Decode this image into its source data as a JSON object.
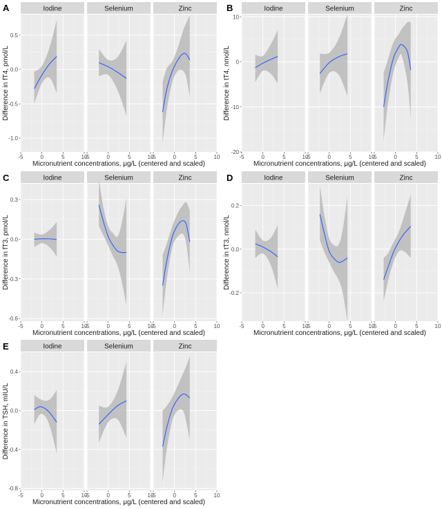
{
  "figure": {
    "xlabel": "Micronutrient concentrations, μg/L (centered and scaled)",
    "facets": [
      "Iodine",
      "Selenium",
      "Zinc"
    ],
    "colors": {
      "panel_bg": "#ebebeb",
      "strip_bg": "#d9d9d9",
      "grid_major": "#ffffff",
      "grid_minor": "#f4f4f4",
      "ribbon": "#b3b3b3",
      "line": "#3366ff",
      "axis_text": "#4d4d4d",
      "title_text": "#1a1a1a"
    }
  },
  "chart_data": [
    {
      "panel_letter": "A",
      "type": "line",
      "ylabel": "Difference in fT4, pmol/L",
      "xlim": [
        -5,
        10
      ],
      "ylim": [
        -1.2,
        0.8
      ],
      "x_ticks": [
        -5,
        0,
        5,
        10
      ],
      "y_ticks": [
        -1.0,
        -0.5,
        0.0,
        0.5
      ],
      "y_tick_labels": [
        "-1.0",
        "-0.5",
        "0.0",
        "0.5"
      ],
      "series": [
        {
          "name": "Iodine",
          "points": [
            {
              "x": -1.8,
              "y": -0.28,
              "lo": -0.5,
              "hi": -0.03
            },
            {
              "x": 0,
              "y": -0.08,
              "lo": -0.2,
              "hi": 0.05
            },
            {
              "x": 1.8,
              "y": 0.08,
              "lo": -0.12,
              "hi": 0.32
            },
            {
              "x": 3.5,
              "y": 0.19,
              "lo": -0.34,
              "hi": 0.72
            }
          ]
        },
        {
          "name": "Selenium",
          "points": [
            {
              "x": -2.2,
              "y": 0.1,
              "lo": -0.1,
              "hi": 0.3
            },
            {
              "x": 0,
              "y": 0.04,
              "lo": -0.08,
              "hi": 0.14
            },
            {
              "x": 2.2,
              "y": -0.04,
              "lo": -0.3,
              "hi": 0.18
            },
            {
              "x": 4.3,
              "y": -0.13,
              "lo": -0.67,
              "hi": 0.42
            }
          ]
        },
        {
          "name": "Zinc",
          "points": [
            {
              "x": -2.8,
              "y": -0.62,
              "lo": -1.08,
              "hi": -0.18
            },
            {
              "x": -1.8,
              "y": -0.28,
              "lo": -0.58,
              "hi": 0.02
            },
            {
              "x": -0.5,
              "y": -0.02,
              "lo": -0.18,
              "hi": 0.12
            },
            {
              "x": 0.8,
              "y": 0.14,
              "lo": -0.02,
              "hi": 0.32
            },
            {
              "x": 2.0,
              "y": 0.23,
              "lo": -0.02,
              "hi": 0.56
            },
            {
              "x": 2.8,
              "y": 0.22,
              "lo": -0.12,
              "hi": 0.68
            },
            {
              "x": 3.6,
              "y": 0.14,
              "lo": -0.4,
              "hi": 0.78
            }
          ]
        }
      ]
    },
    {
      "panel_letter": "B",
      "type": "line",
      "ylabel": "Difference in tT4, nmol/L",
      "xlim": [
        -5,
        10
      ],
      "ylim": [
        -20,
        10.5
      ],
      "x_ticks": [
        -5,
        0,
        5,
        10
      ],
      "y_ticks": [
        -20,
        -10,
        0,
        10
      ],
      "y_tick_labels": [
        "-20",
        "-10",
        "0",
        "10"
      ],
      "series": [
        {
          "name": "Iodine",
          "points": [
            {
              "x": -1.8,
              "y": -1.3,
              "lo": -4.5,
              "hi": 1.6
            },
            {
              "x": 0,
              "y": -0.3,
              "lo": -2.0,
              "hi": 1.3
            },
            {
              "x": 1.8,
              "y": 0.5,
              "lo": -2.6,
              "hi": 3.8
            },
            {
              "x": 3.5,
              "y": 1.2,
              "lo": -4.8,
              "hi": 7.0
            }
          ]
        },
        {
          "name": "Selenium",
          "points": [
            {
              "x": -2.2,
              "y": -2.6,
              "lo": -7.0,
              "hi": 1.8
            },
            {
              "x": 0,
              "y": -0.2,
              "lo": -2.5,
              "hi": 2.0
            },
            {
              "x": 2.2,
              "y": 1.1,
              "lo": -2.8,
              "hi": 5.0
            },
            {
              "x": 4.3,
              "y": 1.8,
              "lo": -7.5,
              "hi": 10.5
            }
          ]
        },
        {
          "name": "Zinc",
          "points": [
            {
              "x": -2.8,
              "y": -10.0,
              "lo": -17.5,
              "hi": -2.5
            },
            {
              "x": -1.8,
              "y": -4.5,
              "lo": -9.5,
              "hi": 0.5
            },
            {
              "x": -0.5,
              "y": 0.8,
              "lo": -2.3,
              "hi": 4.3
            },
            {
              "x": 0.8,
              "y": 3.3,
              "lo": 1.0,
              "hi": 6.2
            },
            {
              "x": 1.5,
              "y": 3.8,
              "lo": 1.3,
              "hi": 7.3
            },
            {
              "x": 2.8,
              "y": 2.3,
              "lo": -4.5,
              "hi": 8.8
            },
            {
              "x": 3.6,
              "y": -1.8,
              "lo": -12.5,
              "hi": 8.8
            }
          ]
        }
      ]
    },
    {
      "panel_letter": "C",
      "type": "line",
      "ylabel": "Difference in fT3, pmol/L",
      "xlim": [
        -5,
        10
      ],
      "ylim": [
        -0.62,
        0.42
      ],
      "x_ticks": [
        -5,
        0,
        5,
        10
      ],
      "y_ticks": [
        -0.6,
        -0.3,
        0.0,
        0.3
      ],
      "y_tick_labels": [
        "-0.6",
        "-0.3",
        "0.0",
        "0.3"
      ],
      "series": [
        {
          "name": "Iodine",
          "points": [
            {
              "x": -1.8,
              "y": 0.0,
              "lo": -0.06,
              "hi": 0.05
            },
            {
              "x": 0,
              "y": 0.003,
              "lo": -0.03,
              "hi": 0.035
            },
            {
              "x": 1.8,
              "y": 0.003,
              "lo": -0.06,
              "hi": 0.07
            },
            {
              "x": 3.5,
              "y": -0.003,
              "lo": -0.13,
              "hi": 0.13
            }
          ]
        },
        {
          "name": "Selenium",
          "points": [
            {
              "x": -2.2,
              "y": 0.26,
              "lo": 0.1,
              "hi": 0.45
            },
            {
              "x": -1.0,
              "y": 0.12,
              "lo": 0.02,
              "hi": 0.22
            },
            {
              "x": 0,
              "y": 0.02,
              "lo": -0.05,
              "hi": 0.1
            },
            {
              "x": 1.0,
              "y": -0.04,
              "lo": -0.12,
              "hi": 0.05
            },
            {
              "x": 2.2,
              "y": -0.09,
              "lo": -0.2,
              "hi": 0.02
            },
            {
              "x": 3.2,
              "y": -0.1,
              "lo": -0.32,
              "hi": 0.12
            },
            {
              "x": 4.3,
              "y": -0.1,
              "lo": -0.5,
              "hi": 0.31
            }
          ]
        },
        {
          "name": "Zinc",
          "points": [
            {
              "x": -2.8,
              "y": -0.35,
              "lo": -0.58,
              "hi": -0.12
            },
            {
              "x": -1.8,
              "y": -0.16,
              "lo": -0.3,
              "hi": -0.03
            },
            {
              "x": -0.5,
              "y": 0.02,
              "lo": -0.06,
              "hi": 0.1
            },
            {
              "x": 0.8,
              "y": 0.11,
              "lo": 0.02,
              "hi": 0.2
            },
            {
              "x": 2.0,
              "y": 0.14,
              "lo": 0.04,
              "hi": 0.26
            },
            {
              "x": 2.8,
              "y": 0.11,
              "lo": -0.04,
              "hi": 0.28
            },
            {
              "x": 3.6,
              "y": -0.02,
              "lo": -0.25,
              "hi": 0.22
            }
          ]
        }
      ]
    },
    {
      "panel_letter": "D",
      "type": "line",
      "ylabel": "Difference in tT3, nmol/L",
      "xlim": [
        -5,
        10
      ],
      "ylim": [
        -0.33,
        0.3
      ],
      "x_ticks": [
        -5,
        0,
        5,
        10
      ],
      "y_ticks": [
        -0.2,
        0.0,
        0.2
      ],
      "y_tick_labels": [
        "-0.2",
        "0.0",
        "0.2"
      ],
      "series": [
        {
          "name": "Iodine",
          "points": [
            {
              "x": -1.8,
              "y": 0.025,
              "lo": -0.04,
              "hi": 0.09
            },
            {
              "x": 0,
              "y": 0.01,
              "lo": -0.02,
              "hi": 0.04
            },
            {
              "x": 1.8,
              "y": -0.01,
              "lo": -0.07,
              "hi": 0.05
            },
            {
              "x": 3.5,
              "y": -0.035,
              "lo": -0.18,
              "hi": 0.11
            }
          ]
        },
        {
          "name": "Selenium",
          "points": [
            {
              "x": -2.2,
              "y": 0.16,
              "lo": 0.04,
              "hi": 0.29
            },
            {
              "x": -1.0,
              "y": 0.06,
              "lo": -0.02,
              "hi": 0.14
            },
            {
              "x": 0,
              "y": -0.01,
              "lo": -0.06,
              "hi": 0.05
            },
            {
              "x": 1.0,
              "y": -0.04,
              "lo": -0.1,
              "hi": 0.02
            },
            {
              "x": 2.2,
              "y": -0.06,
              "lo": -0.14,
              "hi": 0.02
            },
            {
              "x": 3.2,
              "y": -0.055,
              "lo": -0.2,
              "hi": 0.09
            },
            {
              "x": 4.3,
              "y": -0.04,
              "lo": -0.33,
              "hi": 0.24
            }
          ]
        },
        {
          "name": "Zinc",
          "points": [
            {
              "x": -2.8,
              "y": -0.14,
              "lo": -0.24,
              "hi": -0.04
            },
            {
              "x": -1.8,
              "y": -0.085,
              "lo": -0.15,
              "hi": -0.02
            },
            {
              "x": -0.5,
              "y": -0.015,
              "lo": -0.06,
              "hi": 0.03
            },
            {
              "x": 0.8,
              "y": 0.035,
              "lo": -0.01,
              "hi": 0.08
            },
            {
              "x": 2.0,
              "y": 0.07,
              "lo": -0.01,
              "hi": 0.15
            },
            {
              "x": 3.6,
              "y": 0.105,
              "lo": -0.04,
              "hi": 0.25
            }
          ]
        }
      ]
    },
    {
      "panel_letter": "E",
      "type": "line",
      "ylabel": "Difference in TSH, mIU/L",
      "xlim": [
        -5,
        10
      ],
      "ylim": [
        -0.82,
        0.6
      ],
      "x_ticks": [
        -5,
        0,
        5,
        10
      ],
      "y_ticks": [
        -0.8,
        -0.4,
        0.0,
        0.4
      ],
      "y_tick_labels": [
        "-0.8",
        "-0.4",
        "0.0",
        "0.4"
      ],
      "series": [
        {
          "name": "Iodine",
          "points": [
            {
              "x": -1.8,
              "y": 0.01,
              "lo": -0.14,
              "hi": 0.16
            },
            {
              "x": -0.5,
              "y": 0.04,
              "lo": -0.04,
              "hi": 0.12
            },
            {
              "x": 0.8,
              "y": 0.02,
              "lo": -0.06,
              "hi": 0.1
            },
            {
              "x": 2.0,
              "y": -0.03,
              "lo": -0.18,
              "hi": 0.12
            },
            {
              "x": 3.5,
              "y": -0.12,
              "lo": -0.44,
              "hi": 0.21
            }
          ]
        },
        {
          "name": "Selenium",
          "points": [
            {
              "x": -2.2,
              "y": -0.14,
              "lo": -0.33,
              "hi": 0.05
            },
            {
              "x": 0,
              "y": -0.04,
              "lo": -0.12,
              "hi": 0.04
            },
            {
              "x": 2.2,
              "y": 0.05,
              "lo": -0.09,
              "hi": 0.2
            },
            {
              "x": 4.3,
              "y": 0.1,
              "lo": -0.28,
              "hi": 0.5
            }
          ]
        },
        {
          "name": "Zinc",
          "points": [
            {
              "x": -2.8,
              "y": -0.37,
              "lo": -0.74,
              "hi": 0.0
            },
            {
              "x": -1.8,
              "y": -0.17,
              "lo": -0.39,
              "hi": 0.05
            },
            {
              "x": -0.5,
              "y": 0.02,
              "lo": -0.1,
              "hi": 0.14
            },
            {
              "x": 0.8,
              "y": 0.12,
              "lo": 0.0,
              "hi": 0.26
            },
            {
              "x": 2.0,
              "y": 0.17,
              "lo": 0.0,
              "hi": 0.38
            },
            {
              "x": 2.8,
              "y": 0.16,
              "lo": -0.12,
              "hi": 0.46
            },
            {
              "x": 3.6,
              "y": 0.13,
              "lo": -0.3,
              "hi": 0.56
            }
          ]
        }
      ]
    }
  ]
}
